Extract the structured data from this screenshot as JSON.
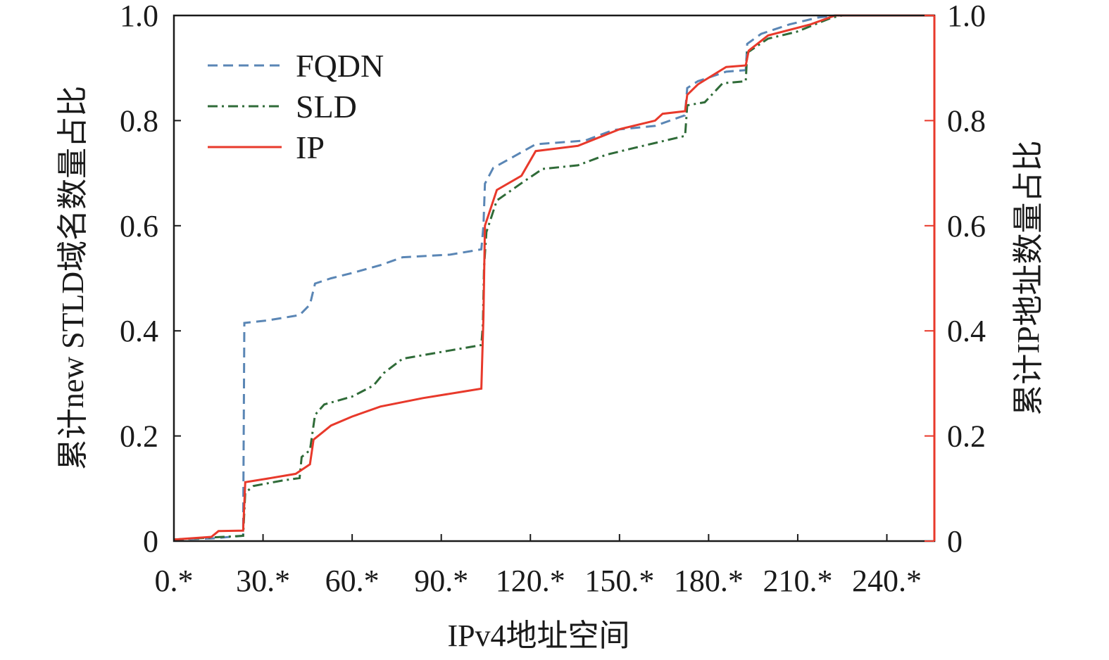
{
  "chart_data": {
    "type": "line",
    "title": "",
    "xlabel": "IPv4地址空间",
    "ylabel": "累计new STLD域名数量占比",
    "ylabel_right": "累计IP地址数量占比",
    "xlim": [
      0,
      256
    ],
    "ylim": [
      0,
      1.0
    ],
    "ylim_right": [
      0,
      1.0
    ],
    "x_ticks": [
      0,
      30,
      60,
      90,
      120,
      150,
      180,
      210,
      240
    ],
    "x_tick_labels": [
      "0.*",
      "30.*",
      "60.*",
      "90.*",
      "120.*",
      "150.*",
      "180.*",
      "210.*",
      "240.*"
    ],
    "y_ticks": [
      0,
      0.2,
      0.4,
      0.6,
      0.8,
      1.0
    ],
    "y_tick_labels": [
      "0",
      "0.2",
      "0.4",
      "0.6",
      "0.8",
      "1.0"
    ],
    "y_right_tick_labels": [
      "0",
      "0.2",
      "0.4",
      "0.6",
      "0.8",
      "1.0"
    ],
    "grid": false,
    "legend_position": "top-left",
    "series": [
      {
        "name": "FQDN",
        "color": "#5a86b5",
        "style": "dashed",
        "axis": "left",
        "points": [
          [
            0,
            0.003
          ],
          [
            12.6,
            0.005
          ],
          [
            23.3,
            0.01
          ],
          [
            23.7,
            0.415
          ],
          [
            31.6,
            0.42
          ],
          [
            42.3,
            0.43
          ],
          [
            45.8,
            0.45
          ],
          [
            47.5,
            0.49
          ],
          [
            52.9,
            0.5
          ],
          [
            60,
            0.51
          ],
          [
            69.5,
            0.525
          ],
          [
            77,
            0.54
          ],
          [
            93,
            0.545
          ],
          [
            103.5,
            0.555
          ],
          [
            104.2,
            0.6
          ],
          [
            104.7,
            0.68
          ],
          [
            107.5,
            0.71
          ],
          [
            112.3,
            0.725
          ],
          [
            121.8,
            0.755
          ],
          [
            138.4,
            0.762
          ],
          [
            147.9,
            0.782
          ],
          [
            162,
            0.79
          ],
          [
            172,
            0.81
          ],
          [
            172.8,
            0.862
          ],
          [
            176.4,
            0.875
          ],
          [
            185.9,
            0.893
          ],
          [
            192.5,
            0.896
          ],
          [
            193,
            0.946
          ],
          [
            197.7,
            0.965
          ],
          [
            207.2,
            0.983
          ],
          [
            216.7,
            0.996
          ],
          [
            222.6,
            1.0
          ],
          [
            256,
            1.0
          ]
        ]
      },
      {
        "name": "SLD",
        "color": "#2f6b38",
        "style": "dashdot",
        "axis": "left",
        "points": [
          [
            0,
            0.003
          ],
          [
            23.3,
            0.01
          ],
          [
            24,
            0.092
          ],
          [
            26.8,
            0.105
          ],
          [
            36.3,
            0.115
          ],
          [
            42.3,
            0.12
          ],
          [
            43,
            0.16
          ],
          [
            45.8,
            0.173
          ],
          [
            47.5,
            0.24
          ],
          [
            50.6,
            0.26
          ],
          [
            60,
            0.275
          ],
          [
            67.2,
            0.296
          ],
          [
            70.7,
            0.32
          ],
          [
            77,
            0.347
          ],
          [
            93.3,
            0.363
          ],
          [
            103.5,
            0.373
          ],
          [
            104,
            0.413
          ],
          [
            104.4,
            0.52
          ],
          [
            105.2,
            0.588
          ],
          [
            108.7,
            0.648
          ],
          [
            117,
            0.681
          ],
          [
            124.1,
            0.708
          ],
          [
            136,
            0.715
          ],
          [
            145.5,
            0.735
          ],
          [
            155,
            0.748
          ],
          [
            172.1,
            0.771
          ],
          [
            172.8,
            0.829
          ],
          [
            178.7,
            0.835
          ],
          [
            184.7,
            0.871
          ],
          [
            192.5,
            0.875
          ],
          [
            193,
            0.929
          ],
          [
            200,
            0.956
          ],
          [
            209.6,
            0.969
          ],
          [
            221.5,
            0.996
          ],
          [
            225,
            1.0
          ],
          [
            256,
            1.0
          ]
        ]
      },
      {
        "name": "IP",
        "color": "#e8392b",
        "style": "solid",
        "axis": "right",
        "points": [
          [
            0,
            0.003
          ],
          [
            12.6,
            0.008
          ],
          [
            15,
            0.019
          ],
          [
            23.3,
            0.02
          ],
          [
            24,
            0.112
          ],
          [
            31.6,
            0.119
          ],
          [
            41,
            0.128
          ],
          [
            45.8,
            0.146
          ],
          [
            47,
            0.193
          ],
          [
            52.9,
            0.22
          ],
          [
            60,
            0.237
          ],
          [
            69.5,
            0.256
          ],
          [
            83.8,
            0.272
          ],
          [
            98,
            0.285
          ],
          [
            103.5,
            0.29
          ],
          [
            104.2,
            0.427
          ],
          [
            104.7,
            0.6
          ],
          [
            108.7,
            0.668
          ],
          [
            117,
            0.695
          ],
          [
            121.8,
            0.742
          ],
          [
            136,
            0.752
          ],
          [
            143.1,
            0.768
          ],
          [
            150.2,
            0.784
          ],
          [
            162,
            0.8
          ],
          [
            164.5,
            0.813
          ],
          [
            172.1,
            0.818
          ],
          [
            172.8,
            0.849
          ],
          [
            176.4,
            0.869
          ],
          [
            185.9,
            0.902
          ],
          [
            192.5,
            0.905
          ],
          [
            193.5,
            0.933
          ],
          [
            200,
            0.962
          ],
          [
            214.3,
            0.983
          ],
          [
            222.6,
            1.0
          ],
          [
            256,
            1.0
          ]
        ]
      }
    ]
  }
}
